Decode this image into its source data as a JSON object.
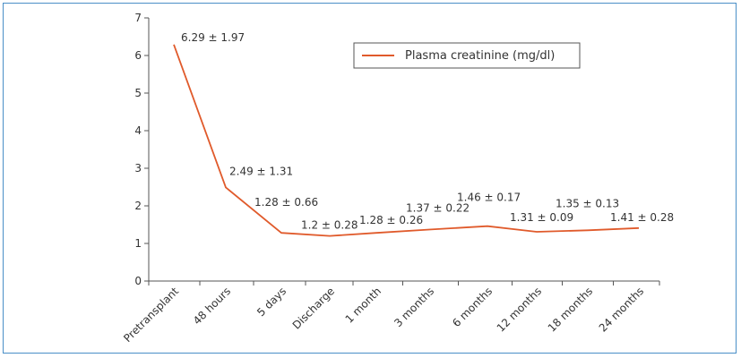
{
  "chart_data": {
    "type": "line",
    "categories": [
      "Pretransplant",
      "48 hours",
      "5 days",
      "Discharge",
      "1 month",
      "3 months",
      "6 months",
      "12 months",
      "18 months",
      "24 months"
    ],
    "series": [
      {
        "name": "Plasma creatinine (mg/dl)",
        "values": [
          6.29,
          2.49,
          1.28,
          1.2,
          1.28,
          1.37,
          1.46,
          1.31,
          1.35,
          1.41
        ],
        "labels": [
          "6.29 ± 1.97",
          "2.49 ± 1.31",
          "1.28 ± 0.66",
          "1.2 ± 0.28",
          "1.28 ± 0.26",
          "1.37 ± 0.22",
          "1.46 ± 0.17",
          "1.31 ± 0.09",
          "1.35 ± 0.13",
          "1.41 ± 0.28"
        ],
        "color": "#e05a2b"
      }
    ],
    "title": "",
    "xlabel": "",
    "ylabel": "",
    "ylim": [
      0,
      7
    ],
    "yticks": [
      "0",
      "1",
      "2",
      "3",
      "4",
      "5",
      "6",
      "7"
    ],
    "grid": false,
    "legend": "top-center"
  },
  "colors": {
    "frame": "#4a8fc7",
    "axis": "#555555",
    "line": "#e05a2b"
  }
}
